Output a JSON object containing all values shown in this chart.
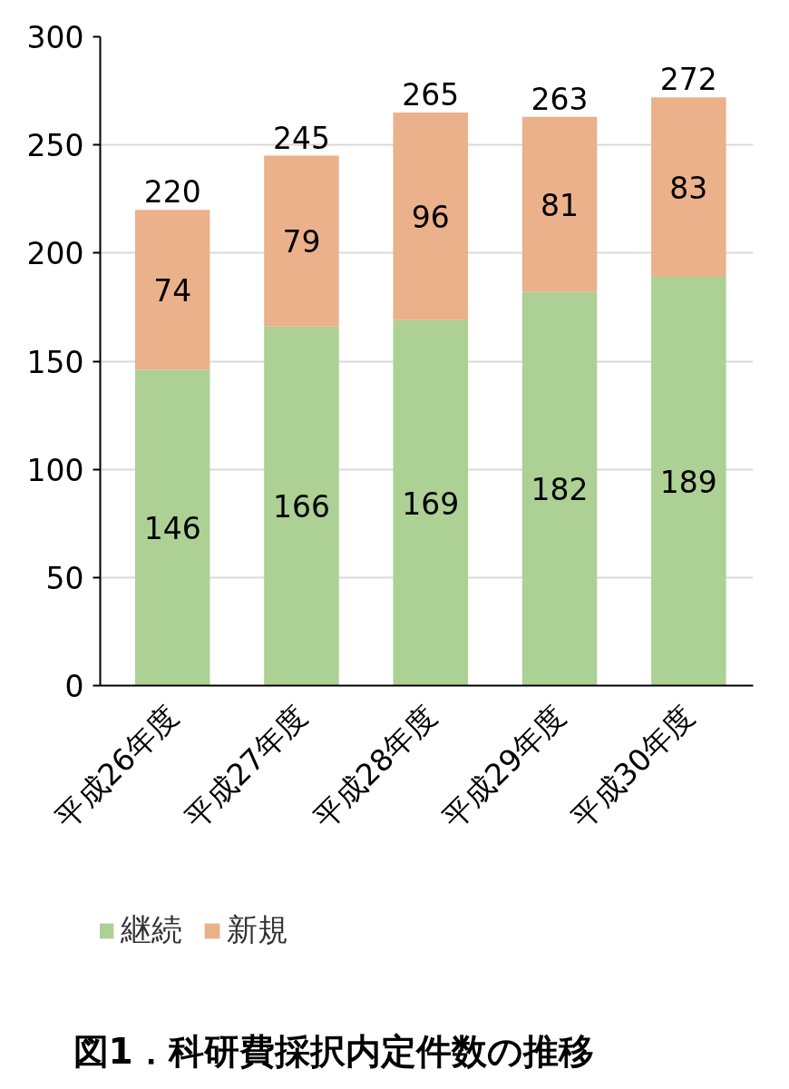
{
  "chart_data": {
    "type": "bar",
    "title": "図1．科研費採択内定件数の推移",
    "categories": [
      "平成26年度",
      "平成27年度",
      "平成28年度",
      "平成29年度",
      "平成30年度"
    ],
    "series": [
      {
        "name": "継続",
        "color": "#add095",
        "values": [
          146,
          166,
          169,
          182,
          189
        ]
      },
      {
        "name": "新規",
        "color": "#ebb18b",
        "values": [
          74,
          79,
          96,
          81,
          83
        ]
      }
    ],
    "stacked": true,
    "data_labels": true,
    "totals": [
      "220",
      "245",
      "265",
      "263",
      "272"
    ],
    "ylim": [
      0,
      300
    ],
    "yticks": [
      0,
      50,
      100,
      150,
      200,
      250,
      300
    ],
    "grid": "y",
    "legend": "bottom"
  }
}
